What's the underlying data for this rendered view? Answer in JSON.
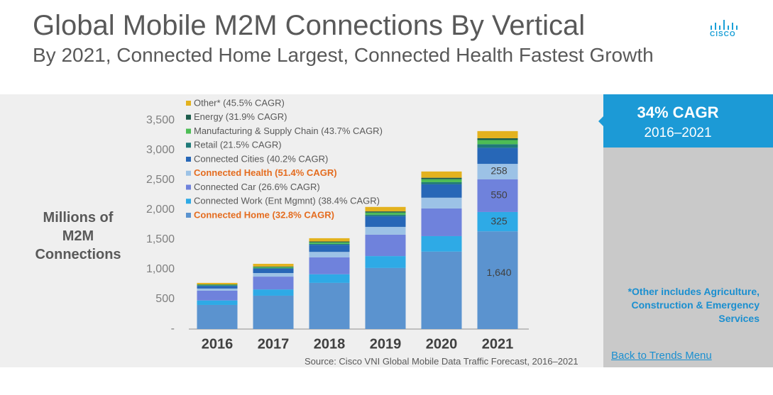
{
  "header": {
    "title": "Global Mobile M2M Connections By Vertical",
    "subtitle": "By 2021, Connected Home Largest, Connected Health Fastest Growth",
    "logo": "CISCO"
  },
  "chart_data": {
    "type": "stacked-bar",
    "y_label": "Millions of M2M Connections",
    "source": "Source: Cisco VNI Global Mobile Data Traffic Forecast, 2016–2021",
    "categories": [
      "2016",
      "2017",
      "2018",
      "2019",
      "2020",
      "2021"
    ],
    "ylim": [
      0,
      3500
    ],
    "yticks": [
      {
        "value": 0,
        "label": "-"
      },
      500,
      {
        "value": 1000,
        "label": "1,000"
      },
      {
        "value": 1500,
        "label": "1,500"
      },
      {
        "value": 2000,
        "label": "2,000"
      },
      {
        "value": 2500,
        "label": "2,500"
      },
      {
        "value": 3000,
        "label": "3,000"
      },
      {
        "value": 3500,
        "label": "3,500"
      }
    ],
    "series": [
      {
        "name": "Connected Home (32.8% CAGR)",
        "color": "#5b93cf",
        "emphasis": true,
        "values": [
          405,
          560,
          775,
          1025,
          1300,
          1640
        ],
        "value_labels": [
          null,
          null,
          null,
          null,
          null,
          "1,640"
        ]
      },
      {
        "name": "Connected Work (Ent Mgmnt) (38.4% CAGR)",
        "color": "#2eaae6",
        "values": [
          75,
          105,
          145,
          200,
          260,
          325
        ],
        "value_labels": [
          null,
          null,
          null,
          null,
          null,
          "325"
        ]
      },
      {
        "name": "Connected Car (26.6% CAGR)",
        "color": "#6f82dc",
        "values": [
          165,
          215,
          285,
          360,
          465,
          550
        ],
        "value_labels": [
          null,
          null,
          null,
          null,
          null,
          "550"
        ]
      },
      {
        "name": "Connected Health (51.4% CAGR)",
        "color": "#9cc2e6",
        "emphasis": true,
        "values": [
          35,
          60,
          90,
          130,
          180,
          258
        ],
        "value_labels": [
          null,
          null,
          null,
          null,
          null,
          "258"
        ]
      },
      {
        "name": "Connected Cities (40.2% CAGR)",
        "color": "#2767b7",
        "values": [
          45,
          75,
          120,
          180,
          225,
          270
        ]
      },
      {
        "name": "Retail (21.5% CAGR)",
        "color": "#1f7a78",
        "values": [
          10,
          10,
          15,
          25,
          35,
          60
        ]
      },
      {
        "name": "Manufacturing & Supply Chain (43.7% CAGR)",
        "color": "#4dbd55",
        "values": [
          10,
          15,
          25,
          35,
          50,
          70
        ]
      },
      {
        "name": "Energy (31.9% CAGR)",
        "color": "#1c5c4c",
        "values": [
          5,
          10,
          15,
          20,
          25,
          30
        ]
      },
      {
        "name": "Other* (45.5% CAGR)",
        "color": "#e3b21e",
        "values": [
          25,
          45,
          55,
          75,
          105,
          120
        ]
      }
    ]
  },
  "sidebar": {
    "headline": "34% CAGR",
    "period": "2016–2021",
    "footnote": "*Other includes Agriculture, Construction & Emergency Services",
    "link": "Back to Trends Menu"
  }
}
